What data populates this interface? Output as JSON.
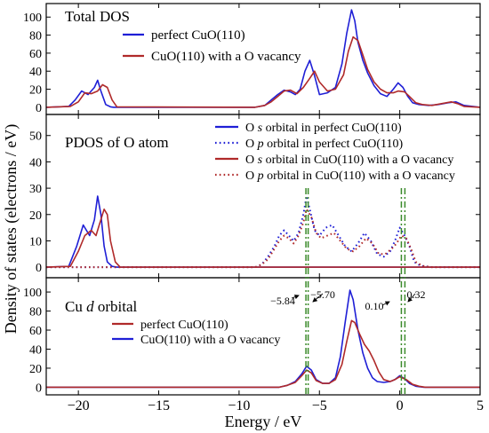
{
  "chart_data": {
    "type": "line",
    "xlabel": "Energy / eV",
    "ylabel": "Density of states (electrons / eV)",
    "xlim": [
      -22,
      5
    ],
    "x_ticks": [
      -20,
      -15,
      -10,
      -5,
      0,
      5
    ],
    "x_tick_labels": [
      "−20",
      "−15",
      "−10",
      "−5",
      "0",
      "5"
    ],
    "colors": {
      "blue": "#1f1fd6",
      "red": "#b02a2a",
      "green": "#3a8a2a"
    },
    "panels": [
      {
        "title": "Total DOS",
        "ylim": [
          -8,
          115
        ],
        "y_ticks": [
          0,
          20,
          40,
          60,
          80,
          100
        ],
        "y_tick_labels": [
          "0",
          "20",
          "40",
          "60",
          "80",
          "100"
        ],
        "series": [
          {
            "name": "perfect CuO(110)",
            "color": "#1f1fd6",
            "dash": "solid",
            "x": [
              -22,
              -20.6,
              -20.2,
              -19.8,
              -19.4,
              -19.0,
              -18.8,
              -18.6,
              -18.3,
              -18.0,
              -17.8,
              -9,
              -8.4,
              -8.0,
              -7.6,
              -7.2,
              -6.8,
              -6.5,
              -6.2,
              -5.9,
              -5.6,
              -5.3,
              -5.0,
              -4.5,
              -4.0,
              -3.6,
              -3.3,
              -3.0,
              -2.8,
              -2.6,
              -2.3,
              -2.0,
              -1.6,
              -1.2,
              -0.8,
              -0.4,
              -0.1,
              0.2,
              0.5,
              0.8,
              1.2,
              1.8,
              2.4,
              3.0,
              3.5,
              4.0,
              5
            ],
            "y": [
              0,
              1,
              8,
              18,
              14,
              22,
              30,
              18,
              3,
              0.5,
              0,
              0,
              2,
              8,
              14,
              19,
              17,
              14,
              20,
              40,
              52,
              35,
              14,
              16,
              22,
              48,
              82,
              108,
              96,
              72,
              52,
              38,
              24,
              15,
              12,
              20,
              27,
              22,
              12,
              5,
              3,
              2,
              3,
              5,
              6,
              2,
              0
            ]
          },
          {
            "name": "CuO(110) with a O vacancy",
            "color": "#b02a2a",
            "dash": "solid",
            "x": [
              -22,
              -20.5,
              -20.0,
              -19.6,
              -19.2,
              -18.8,
              -18.5,
              -18.2,
              -17.9,
              -17.6,
              -9,
              -8.4,
              -8.0,
              -7.6,
              -7.2,
              -6.8,
              -6.4,
              -6.0,
              -5.6,
              -5.3,
              -5.0,
              -4.5,
              -4.0,
              -3.5,
              -3.2,
              -2.9,
              -2.6,
              -2.3,
              -2.0,
              -1.6,
              -1.2,
              -0.8,
              -0.4,
              -0.1,
              0.3,
              0.6,
              1.0,
              1.4,
              2.0,
              2.6,
              3.2,
              3.6,
              4.0,
              5
            ],
            "y": [
              0,
              1,
              6,
              16,
              15,
              18,
              25,
              22,
              8,
              0.5,
              0,
              2,
              6,
              12,
              18,
              19,
              15,
              22,
              32,
              40,
              28,
              18,
              20,
              36,
              62,
              78,
              74,
              58,
              42,
              28,
              20,
              16,
              16,
              18,
              17,
              12,
              5,
              3,
              2,
              4,
              6,
              4,
              1,
              0
            ]
          }
        ],
        "legend": [
          {
            "label": "perfect CuO(110)",
            "color": "#1f1fd6",
            "dash": "solid"
          },
          {
            "label": "CuO(110) with a O vacancy",
            "color": "#b02a2a",
            "dash": "solid"
          }
        ],
        "legend_position": "top-right"
      },
      {
        "title": "PDOS of O atom",
        "ylim": [
          -4,
          58
        ],
        "y_ticks": [
          0,
          10,
          20,
          30,
          40,
          50
        ],
        "y_tick_labels": [
          "0",
          "10",
          "20",
          "30",
          "40",
          "50"
        ],
        "series": [
          {
            "name": "O s orbital in perfect CuO(110)",
            "color": "#1f1fd6",
            "dash": "solid",
            "x": [
              -22,
              -20.6,
              -20.1,
              -19.7,
              -19.3,
              -19.0,
              -18.8,
              -18.6,
              -18.4,
              -18.2,
              -17.9,
              -17.6,
              -9,
              5
            ],
            "y": [
              0,
              0.3,
              8,
              16,
              12,
              18,
              27,
              20,
              8,
              2,
              0.3,
              0,
              0,
              0
            ]
          },
          {
            "name": "O p orbital in perfect CuO(110)",
            "color": "#1f1fd6",
            "dash": "dotted",
            "x": [
              -22,
              -9,
              -8.6,
              -8.2,
              -7.8,
              -7.5,
              -7.2,
              -6.9,
              -6.6,
              -6.3,
              -6.0,
              -5.8,
              -5.6,
              -5.3,
              -5.0,
              -4.6,
              -4.2,
              -3.8,
              -3.4,
              -3.0,
              -2.6,
              -2.2,
              -1.8,
              -1.4,
              -1.0,
              -0.6,
              -0.3,
              0.0,
              0.3,
              0.6,
              0.9,
              1.3,
              2.0,
              5
            ],
            "y": [
              0,
              0,
              1,
              4,
              8,
              12,
              14,
              12,
              10,
              13,
              20,
              27,
              22,
              14,
              12,
              15,
              16,
              12,
              8,
              6,
              9,
              13,
              10,
              5,
              4,
              6,
              10,
              15,
              12,
              8,
              2,
              0.5,
              0,
              0
            ]
          },
          {
            "name": "O s orbital in CuO(110) with a O vacancy",
            "color": "#b02a2a",
            "dash": "solid",
            "x": [
              -22,
              -20.5,
              -20.0,
              -19.6,
              -19.2,
              -18.9,
              -18.7,
              -18.4,
              -18.2,
              -18.0,
              -17.7,
              -17.4,
              -9,
              5
            ],
            "y": [
              0,
              0.3,
              6,
              12,
              14,
              12,
              16,
              22,
              20,
              10,
              2,
              0,
              0,
              0
            ]
          },
          {
            "name": "O p orbital in CuO(110) with a O vacancy",
            "color": "#b02a2a",
            "dash": "dotted",
            "x": [
              -22,
              -9,
              -8.6,
              -8.2,
              -7.8,
              -7.5,
              -7.2,
              -6.9,
              -6.6,
              -6.3,
              -6.0,
              -5.8,
              -5.5,
              -5.2,
              -4.9,
              -4.5,
              -4.1,
              -3.7,
              -3.3,
              -2.9,
              -2.5,
              -2.1,
              -1.7,
              -1.3,
              -0.9,
              -0.5,
              -0.2,
              0.1,
              0.4,
              0.7,
              1.0,
              1.4,
              2.0,
              5
            ],
            "y": [
              0,
              0,
              1,
              3,
              7,
              10,
              12,
              11,
              9,
              12,
              17,
              22,
              19,
              13,
              11,
              12,
              13,
              10,
              7,
              6,
              8,
              11,
              9,
              5,
              5,
              7,
              9,
              12,
              11,
              7,
              2,
              0.5,
              0,
              0
            ]
          }
        ],
        "legend": [
          {
            "label_parts": [
              "O ",
              "s",
              " orbital in perfect CuO(110)"
            ],
            "color": "#1f1fd6",
            "dash": "solid"
          },
          {
            "label_parts": [
              "O ",
              "p",
              " orbital in perfect CuO(110)"
            ],
            "color": "#1f1fd6",
            "dash": "dotted"
          },
          {
            "label_parts": [
              "O ",
              "s",
              " orbital in CuO(110) with a O vacancy"
            ],
            "color": "#b02a2a",
            "dash": "solid"
          },
          {
            "label_parts": [
              "O ",
              "p",
              " orbital in CuO(110) with a O vacancy"
            ],
            "color": "#b02a2a",
            "dash": "dotted"
          }
        ],
        "legend_position": "top-right"
      },
      {
        "title_parts": [
          "Cu ",
          "d",
          " orbital"
        ],
        "ylim": [
          -8,
          115
        ],
        "y_ticks": [
          0,
          20,
          40,
          60,
          80,
          100
        ],
        "y_tick_labels": [
          "0",
          "20",
          "40",
          "60",
          "80",
          "100"
        ],
        "series": [
          {
            "color": "#1f1fd6",
            "dash": "solid",
            "x": [
              -22,
              -7.5,
              -7.0,
              -6.5,
              -6.1,
              -5.8,
              -5.5,
              -5.2,
              -4.8,
              -4.4,
              -4.0,
              -3.7,
              -3.4,
              -3.1,
              -2.9,
              -2.6,
              -2.3,
              -2.0,
              -1.7,
              -1.4,
              -1.0,
              -0.6,
              -0.3,
              0.0,
              0.3,
              0.6,
              1.0,
              1.5,
              5
            ],
            "y": [
              0,
              0,
              2,
              6,
              14,
              22,
              18,
              8,
              4,
              4,
              10,
              32,
              68,
              102,
              92,
              60,
              36,
              20,
              10,
              6,
              5,
              6,
              8,
              12,
              9,
              4,
              1,
              0,
              0
            ]
          },
          {
            "color": "#b02a2a",
            "dash": "solid",
            "x": [
              -22,
              -7.5,
              -7.0,
              -6.5,
              -6.1,
              -5.8,
              -5.5,
              -5.2,
              -4.8,
              -4.4,
              -4.0,
              -3.6,
              -3.3,
              -3.0,
              -2.8,
              -2.5,
              -2.2,
              -1.9,
              -1.6,
              -1.3,
              -1.0,
              -0.6,
              -0.3,
              0.0,
              0.4,
              0.8,
              1.2,
              1.6,
              5
            ],
            "y": [
              0,
              0,
              2,
              5,
              12,
              18,
              15,
              7,
              4,
              4,
              8,
              24,
              48,
              70,
              68,
              56,
              45,
              38,
              28,
              16,
              8,
              6,
              8,
              11,
              8,
              3,
              1,
              0,
              0
            ]
          }
        ],
        "legend": [
          {
            "label": "perfect CuO(110)",
            "color": "#b02a2a",
            "dash": "solid"
          },
          {
            "label": "CuO(110) with a O vacancy",
            "color": "#1f1fd6",
            "dash": "solid"
          }
        ],
        "legend_position": "left-center"
      }
    ],
    "reference_lines": [
      {
        "x": -5.84,
        "label": "−5.84",
        "color": "#3a8a2a",
        "dash": "dash-dot"
      },
      {
        "x": -5.7,
        "label": "−5.70",
        "color": "#3a8a2a",
        "dash": "dash-dot"
      },
      {
        "x": 0.1,
        "label": "0.10",
        "color": "#3a8a2a",
        "dash": "dash-dot"
      },
      {
        "x": 0.32,
        "label": "0.32",
        "color": "#3a8a2a",
        "dash": "dash-dot"
      }
    ]
  }
}
